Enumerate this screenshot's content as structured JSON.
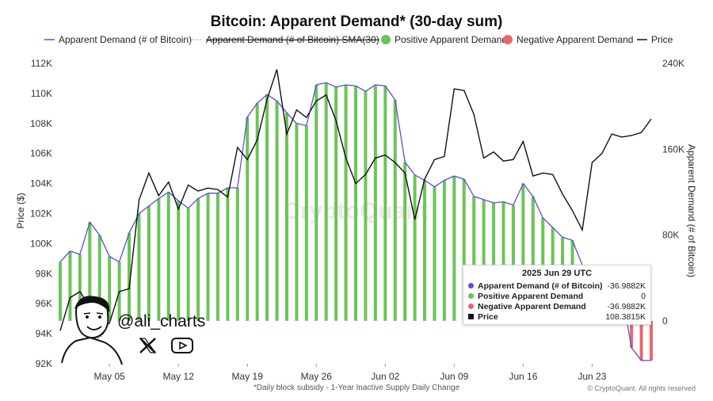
{
  "chart_data": {
    "type": "bar+line",
    "title": "Bitcoin: Apparent Demand* (30-day sum)",
    "footnote": "*Daily block subsidy - 1-Year Inactive Supply Daily Change",
    "credit": "© CryptoQuant. All rights reserved",
    "watermark": "CryptoQuant",
    "legend": [
      {
        "label": "Apparent Demand (# of Bitcoin)",
        "kind": "line",
        "color": "#5b4fd6"
      },
      {
        "label": "Apparent Demand (# of Bitcoin) SMA(30)",
        "kind": "dotted-struck",
        "color": "#999999"
      },
      {
        "label": "Positive Apparent Demand",
        "kind": "dot",
        "color": "#6cc35a"
      },
      {
        "label": "Negative Apparent Demand",
        "kind": "dot",
        "color": "#e8696b"
      },
      {
        "label": "Price",
        "kind": "line",
        "color": "#111111"
      }
    ],
    "left_axis": {
      "label": "Price ($)",
      "range": [
        92000,
        112000
      ],
      "ticks": [
        "92K",
        "94K",
        "96K",
        "98K",
        "100K",
        "102K",
        "104K",
        "106K",
        "108K",
        "110K",
        "112K"
      ]
    },
    "right_axis": {
      "label": "Apparent Demand (# of Bitcoin)",
      "range": [
        -40000,
        240000
      ],
      "ticks": [
        "0",
        "80K",
        "160K",
        "240K"
      ]
    },
    "x_ticks": [
      "May 05",
      "May 12",
      "May 19",
      "May 26",
      "Jun 02",
      "Jun 09",
      "Jun 16",
      "Jun 23"
    ],
    "days": [
      "Apr 30",
      "May 01",
      "May 02",
      "May 03",
      "May 04",
      "May 05",
      "May 06",
      "May 07",
      "May 08",
      "May 09",
      "May 10",
      "May 11",
      "May 12",
      "May 13",
      "May 14",
      "May 15",
      "May 16",
      "May 17",
      "May 18",
      "May 19",
      "May 20",
      "May 21",
      "May 22",
      "May 23",
      "May 24",
      "May 25",
      "May 26",
      "May 27",
      "May 28",
      "May 29",
      "May 30",
      "May 31",
      "Jun 01",
      "Jun 02",
      "Jun 03",
      "Jun 04",
      "Jun 05",
      "Jun 06",
      "Jun 07",
      "Jun 08",
      "Jun 09",
      "Jun 10",
      "Jun 11",
      "Jun 12",
      "Jun 13",
      "Jun 14",
      "Jun 15",
      "Jun 16",
      "Jun 17",
      "Jun 18",
      "Jun 19",
      "Jun 20",
      "Jun 21",
      "Jun 22",
      "Jun 23",
      "Jun 24",
      "Jun 25",
      "Jun 26",
      "Jun 27",
      "Jun 28",
      "Jun 29"
    ],
    "apparent_demand": [
      55000,
      65000,
      62000,
      92000,
      80000,
      60000,
      55000,
      82000,
      100000,
      107000,
      114000,
      120000,
      112000,
      105000,
      114000,
      119000,
      119000,
      124000,
      124000,
      190000,
      203000,
      211000,
      205000,
      194000,
      184000,
      182000,
      220000,
      222000,
      218000,
      220000,
      219000,
      214000,
      220000,
      219000,
      206000,
      148000,
      136000,
      131000,
      125000,
      131000,
      135000,
      132000,
      116000,
      113000,
      110000,
      111000,
      108000,
      128000,
      116000,
      96000,
      87000,
      78000,
      75000,
      52000,
      20000,
      48000,
      48000,
      28000,
      -25000,
      -37000,
      -36988
    ],
    "price": [
      {
        "d": "Apr 30",
        "v": 94200
      },
      {
        "d": "May 01",
        "v": 96400
      },
      {
        "d": "May 02",
        "v": 96800
      },
      {
        "d": "May 03",
        "v": 95800
      },
      {
        "d": "May 04",
        "v": 94300
      },
      {
        "d": "May 05",
        "v": 94700
      },
      {
        "d": "May 06",
        "v": 96800
      },
      {
        "d": "May 07",
        "v": 97000
      },
      {
        "d": "May 08",
        "v": 102900
      },
      {
        "d": "May 09",
        "v": 104700
      },
      {
        "d": "May 10",
        "v": 103200
      },
      {
        "d": "May 11",
        "v": 104100
      },
      {
        "d": "May 12",
        "v": 102300
      },
      {
        "d": "May 13",
        "v": 103900
      },
      {
        "d": "May 14",
        "v": 103500
      },
      {
        "d": "May 15",
        "v": 103700
      },
      {
        "d": "May 16",
        "v": 103600
      },
      {
        "d": "May 17",
        "v": 103100
      },
      {
        "d": "May 18",
        "v": 106400
      },
      {
        "d": "May 19",
        "v": 105600
      },
      {
        "d": "May 20",
        "v": 106900
      },
      {
        "d": "May 21",
        "v": 109600
      },
      {
        "d": "May 22",
        "v": 111600
      },
      {
        "d": "May 23",
        "v": 107300
      },
      {
        "d": "May 24",
        "v": 108900
      },
      {
        "d": "May 25",
        "v": 108400
      },
      {
        "d": "May 26",
        "v": 109500
      },
      {
        "d": "May 27",
        "v": 109900
      },
      {
        "d": "May 28",
        "v": 108200
      },
      {
        "d": "May 29",
        "v": 105700
      },
      {
        "d": "May 30",
        "v": 104000
      },
      {
        "d": "May 31",
        "v": 104600
      },
      {
        "d": "Jun 01",
        "v": 105700
      },
      {
        "d": "Jun 02",
        "v": 105900
      },
      {
        "d": "Jun 03",
        "v": 105400
      },
      {
        "d": "Jun 04",
        "v": 104700
      },
      {
        "d": "Jun 05",
        "v": 101600
      },
      {
        "d": "Jun 06",
        "v": 104300
      },
      {
        "d": "Jun 07",
        "v": 105600
      },
      {
        "d": "Jun 08",
        "v": 105800
      },
      {
        "d": "Jun 09",
        "v": 110300
      },
      {
        "d": "Jun 10",
        "v": 110200
      },
      {
        "d": "Jun 11",
        "v": 108600
      },
      {
        "d": "Jun 12",
        "v": 105700
      },
      {
        "d": "Jun 13",
        "v": 106100
      },
      {
        "d": "Jun 14",
        "v": 105500
      },
      {
        "d": "Jun 15",
        "v": 105600
      },
      {
        "d": "Jun 16",
        "v": 106800
      },
      {
        "d": "Jun 17",
        "v": 104500
      },
      {
        "d": "Jun 18",
        "v": 104700
      },
      {
        "d": "Jun 19",
        "v": 104600
      },
      {
        "d": "Jun 20",
        "v": 103300
      },
      {
        "d": "Jun 21",
        "v": 102200
      },
      {
        "d": "Jun 22",
        "v": 100900
      },
      {
        "d": "Jun 23",
        "v": 105400
      },
      {
        "d": "Jun 24",
        "v": 106000
      },
      {
        "d": "Jun 25",
        "v": 107300
      },
      {
        "d": "Jun 26",
        "v": 107100
      },
      {
        "d": "Jun 27",
        "v": 107200
      },
      {
        "d": "Jun 28",
        "v": 107400
      },
      {
        "d": "Jun 29",
        "v": 108300
      }
    ],
    "grid": false,
    "legend_position": "top"
  },
  "tooltip": {
    "date": "2025 Jun 29 UTC",
    "rows": [
      {
        "name": "Apparent Demand (# of Bitcoin)",
        "value": "-36.9882K",
        "color": "#5b4fd6",
        "marker": "dot"
      },
      {
        "name": "Positive Apparent Demand",
        "value": "0",
        "color": "#6cc35a",
        "marker": "dot"
      },
      {
        "name": "Negative Apparent Demand",
        "value": "-36.9882K",
        "color": "#e8696b",
        "marker": "dot"
      },
      {
        "name": "Price",
        "value": "108.3815K",
        "color": "#111111",
        "marker": "square"
      }
    ]
  },
  "branding": {
    "handle": "@ali_charts",
    "icons": [
      "cartoon-avatar",
      "x-logo-icon",
      "youtube-icon"
    ]
  }
}
